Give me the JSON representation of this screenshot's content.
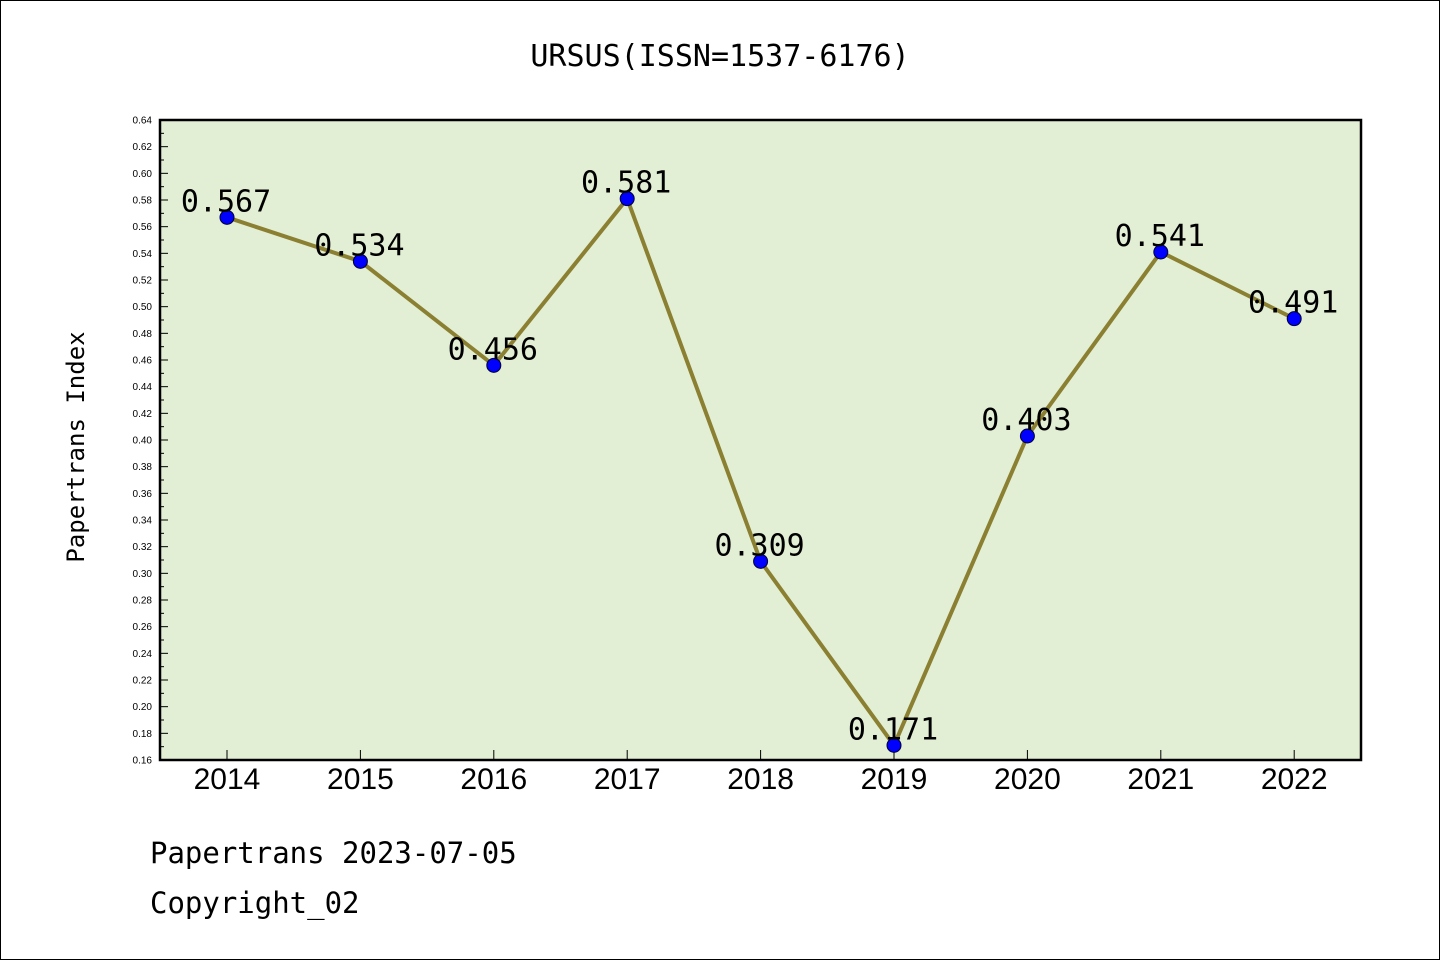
{
  "chart_data": {
    "type": "line",
    "title": "URSUS(ISSN=1537-6176)",
    "ylabel": "Papertrans Index",
    "xlabel": "",
    "categories": [
      "2014",
      "2015",
      "2016",
      "2017",
      "2018",
      "2019",
      "2020",
      "2021",
      "2022"
    ],
    "series": [
      {
        "values": [
          0.567,
          0.534,
          0.456,
          0.581,
          0.309,
          0.171,
          0.403,
          0.541,
          0.491
        ]
      }
    ],
    "data_labels": [
      "0.567",
      "0.534",
      "0.456",
      "0.581",
      "0.309",
      "0.171",
      "0.403",
      "0.541",
      "0.491"
    ],
    "ylim": [
      0.16,
      0.64
    ],
    "yticks": [
      "0.16",
      "0.18",
      "0.20",
      "0.22",
      "0.24",
      "0.26",
      "0.28",
      "0.30",
      "0.32",
      "0.34",
      "0.36",
      "0.38",
      "0.40",
      "0.42",
      "0.44",
      "0.46",
      "0.48",
      "0.50",
      "0.52",
      "0.54",
      "0.56",
      "0.58",
      "0.60",
      "0.62",
      "0.64"
    ],
    "grid": false,
    "colors": {
      "plot_background": "#e2efd4",
      "line": "#8b7f32",
      "marker": "#0000ff"
    }
  },
  "footer": {
    "line1": "Papertrans 2023-07-05",
    "line2": "Copyright_02"
  }
}
